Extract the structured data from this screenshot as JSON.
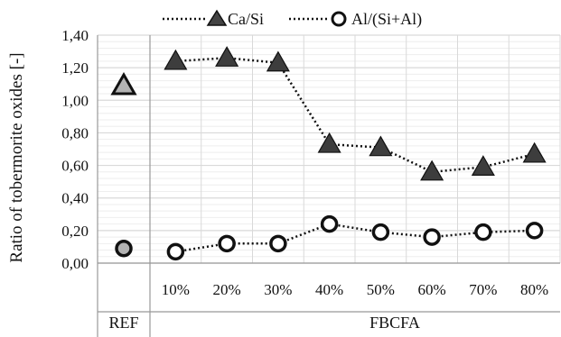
{
  "chart_data": {
    "type": "line",
    "ylabel": "Ratio of tobermorite oxides  [-]",
    "ylim": [
      0,
      1.4
    ],
    "ytick_step": 0.2,
    "ytick_labels": [
      "0,00",
      "0,20",
      "0,40",
      "0,60",
      "0,80",
      "1,00",
      "1,20",
      "1,40"
    ],
    "categories": [
      "10%",
      "20%",
      "30%",
      "40%",
      "50%",
      "60%",
      "70%",
      "80%"
    ],
    "reference_label": "REF",
    "group_label": "FBCFA",
    "grid": true,
    "legend_position": "top",
    "reference": {
      "Ca/Si": 1.09,
      "Al/(Si+Al)": 0.09
    },
    "series": [
      {
        "name": "Ca/Si",
        "marker": "triangle",
        "values": [
          1.24,
          1.26,
          1.23,
          0.73,
          0.71,
          0.56,
          0.59,
          0.67
        ]
      },
      {
        "name": "Al/(Si+Al)",
        "marker": "circle",
        "values": [
          0.07,
          0.12,
          0.12,
          0.24,
          0.19,
          0.16,
          0.19,
          0.2
        ]
      }
    ],
    "colors": {
      "line": "#111111",
      "ref_fill": "#b3b3b3",
      "grid": "#d9d9d9",
      "minor_grid": "#eeeeee"
    }
  }
}
